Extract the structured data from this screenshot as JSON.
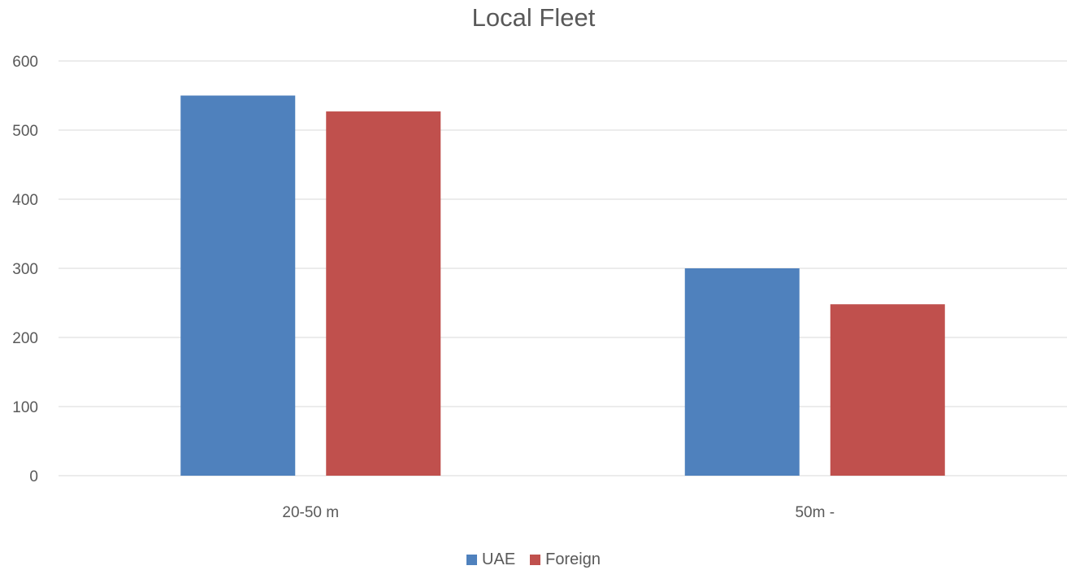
{
  "chart_data": {
    "type": "bar",
    "title": "Local Fleet",
    "categories": [
      "20-50 m",
      "50m -"
    ],
    "series": [
      {
        "name": "UAE",
        "values": [
          550,
          300
        ],
        "color": "#4F81BD"
      },
      {
        "name": "Foreign",
        "values": [
          527,
          248
        ],
        "color": "#C0504D"
      }
    ],
    "ylim": [
      0,
      600
    ],
    "yticks": [
      0,
      100,
      200,
      300,
      400,
      500,
      600
    ],
    "grid": true,
    "legend_position": "bottom"
  }
}
